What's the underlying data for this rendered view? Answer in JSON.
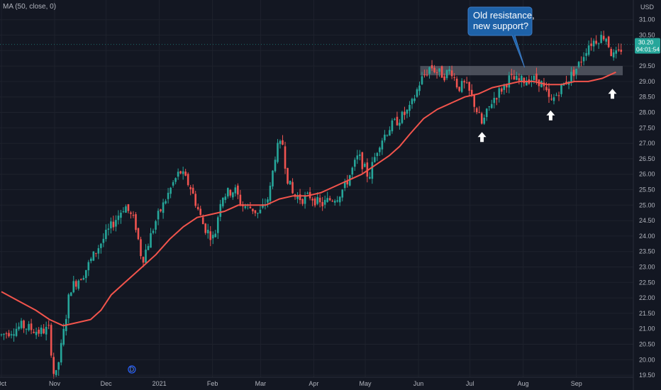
{
  "indicator": {
    "label": "MA (50, close, 0)"
  },
  "price_axis": {
    "currency": "USD"
  },
  "last_price": {
    "value": "30.20",
    "countdown": "04:01:54",
    "color": "#26a69a"
  },
  "annotation": {
    "lines": [
      "Old resistance,",
      "new support?"
    ],
    "color": "#1e62a8"
  },
  "event_marker": {
    "label": "D"
  },
  "colors": {
    "up": "#26a69a",
    "down": "#ef5350",
    "ma": "#f2544c",
    "zone": "#787b86",
    "arrow": "#ffffff"
  },
  "chart_data": {
    "type": "candlestick",
    "ylim": [
      19.3,
      31.1
    ],
    "y_ticks": [
      "19.50",
      "20.00",
      "20.50",
      "21.00",
      "21.50",
      "22.00",
      "22.50",
      "23.00",
      "23.50",
      "24.00",
      "24.50",
      "25.00",
      "25.50",
      "26.00",
      "26.50",
      "27.00",
      "27.50",
      "28.00",
      "28.50",
      "29.00",
      "29.50",
      "30.00",
      "30.50",
      "31.00"
    ],
    "x_ticks": [
      {
        "label": "Oct",
        "day": 0
      },
      {
        "label": "Nov",
        "day": 31
      },
      {
        "label": "Dec",
        "day": 61
      },
      {
        "label": "2021",
        "day": 92
      },
      {
        "label": "Feb",
        "day": 123
      },
      {
        "label": "Mar",
        "day": 151
      },
      {
        "label": "Apr",
        "day": 182
      },
      {
        "label": "May",
        "day": 212
      },
      {
        "label": "Jun",
        "day": 243
      },
      {
        "label": "Jul",
        "day": 273
      },
      {
        "label": "Aug",
        "day": 304
      },
      {
        "label": "Sep",
        "day": 335
      }
    ],
    "price_path": [
      [
        0,
        20.8
      ],
      [
        12,
        21.1
      ],
      [
        22,
        20.9
      ],
      [
        28,
        21.0
      ],
      [
        30,
        19.6
      ],
      [
        32,
        19.5
      ],
      [
        36,
        20.8
      ],
      [
        40,
        22.3
      ],
      [
        48,
        22.8
      ],
      [
        56,
        23.6
      ],
      [
        66,
        24.5
      ],
      [
        72,
        25.0
      ],
      [
        78,
        24.4
      ],
      [
        82,
        23.2
      ],
      [
        90,
        24.5
      ],
      [
        100,
        25.7
      ],
      [
        104,
        26.1
      ],
      [
        110,
        25.6
      ],
      [
        118,
        24.3
      ],
      [
        124,
        23.9
      ],
      [
        128,
        25.3
      ],
      [
        136,
        25.5
      ],
      [
        140,
        25.0
      ],
      [
        146,
        24.9
      ],
      [
        150,
        24.7
      ],
      [
        156,
        25.3
      ],
      [
        160,
        26.8
      ],
      [
        164,
        27.0
      ],
      [
        166,
        26.0
      ],
      [
        170,
        25.3
      ],
      [
        176,
        25.2
      ],
      [
        180,
        25.3
      ],
      [
        186,
        25.0
      ],
      [
        192,
        25.2
      ],
      [
        196,
        25.3
      ],
      [
        200,
        25.6
      ],
      [
        208,
        26.6
      ],
      [
        214,
        25.9
      ],
      [
        220,
        27.0
      ],
      [
        226,
        27.5
      ],
      [
        232,
        27.8
      ],
      [
        238,
        28.1
      ],
      [
        244,
        29.0
      ],
      [
        250,
        29.5
      ],
      [
        254,
        29.3
      ],
      [
        258,
        29.2
      ],
      [
        262,
        29.4
      ],
      [
        266,
        28.8
      ],
      [
        270,
        28.9
      ],
      [
        274,
        28.5
      ],
      [
        280,
        27.6
      ],
      [
        286,
        28.4
      ],
      [
        292,
        28.8
      ],
      [
        296,
        29.1
      ],
      [
        302,
        29.0
      ],
      [
        308,
        29.1
      ],
      [
        314,
        29.0
      ],
      [
        320,
        28.3
      ],
      [
        326,
        28.8
      ],
      [
        332,
        29.2
      ],
      [
        336,
        29.5
      ],
      [
        342,
        30.2
      ],
      [
        348,
        30.4
      ],
      [
        352,
        30.5
      ],
      [
        356,
        29.8
      ],
      [
        360,
        29.9
      ],
      [
        362,
        30.2
      ]
    ],
    "series": [
      {
        "name": "MA (50, close, 0)",
        "type": "line",
        "points": [
          [
            0,
            22.2
          ],
          [
            10,
            21.9
          ],
          [
            20,
            21.6
          ],
          [
            28,
            21.3
          ],
          [
            36,
            21.1
          ],
          [
            44,
            21.2
          ],
          [
            52,
            21.3
          ],
          [
            58,
            21.6
          ],
          [
            64,
            22.1
          ],
          [
            72,
            22.5
          ],
          [
            80,
            22.9
          ],
          [
            90,
            23.4
          ],
          [
            98,
            23.9
          ],
          [
            106,
            24.3
          ],
          [
            114,
            24.6
          ],
          [
            122,
            24.7
          ],
          [
            130,
            24.8
          ],
          [
            138,
            25.0
          ],
          [
            146,
            25.0
          ],
          [
            154,
            25.0
          ],
          [
            162,
            25.2
          ],
          [
            170,
            25.3
          ],
          [
            178,
            25.3
          ],
          [
            186,
            25.4
          ],
          [
            194,
            25.6
          ],
          [
            202,
            25.8
          ],
          [
            210,
            26.0
          ],
          [
            218,
            26.3
          ],
          [
            226,
            26.6
          ],
          [
            232,
            26.9
          ],
          [
            238,
            27.3
          ],
          [
            246,
            27.8
          ],
          [
            254,
            28.1
          ],
          [
            262,
            28.3
          ],
          [
            270,
            28.5
          ],
          [
            278,
            28.6
          ],
          [
            286,
            28.8
          ],
          [
            294,
            28.9
          ],
          [
            302,
            29.0
          ],
          [
            310,
            29.0
          ],
          [
            318,
            28.9
          ],
          [
            326,
            28.9
          ],
          [
            334,
            29.0
          ],
          [
            342,
            29.0
          ],
          [
            350,
            29.1
          ],
          [
            358,
            29.3
          ]
        ]
      }
    ],
    "resistance_zone": {
      "y_low": 29.2,
      "y_high": 29.5,
      "x_start": 244,
      "x_end": 362
    },
    "support_arrows": [
      {
        "x": 280,
        "y": 27.5
      },
      {
        "x": 320,
        "y": 28.2
      },
      {
        "x": 356,
        "y": 28.9
      }
    ],
    "event_day": 76
  }
}
